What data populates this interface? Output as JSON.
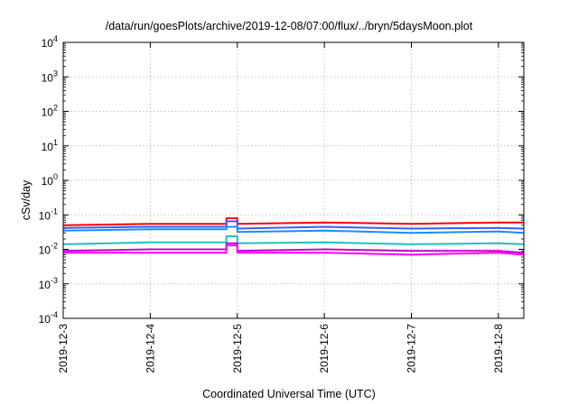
{
  "chart_data": {
    "type": "line",
    "title": "/data/run/goesPlots/archive/2019-12-08/07:00/flux/../bryn/5daysMoon.plot",
    "xlabel": "Coordinated Universal Time (UTC)",
    "ylabel": "cSv/day",
    "y_scale": "log",
    "ylim": [
      0.0001,
      10000
    ],
    "y_ticks": [
      {
        "value": 0.0001,
        "base": "10",
        "exp": "-4"
      },
      {
        "value": 0.001,
        "base": "10",
        "exp": "-3"
      },
      {
        "value": 0.01,
        "base": "10",
        "exp": "-2"
      },
      {
        "value": 0.1,
        "base": "10",
        "exp": "-1"
      },
      {
        "value": 1,
        "base": "10",
        "exp": "0"
      },
      {
        "value": 10,
        "base": "10",
        "exp": "1"
      },
      {
        "value": 100,
        "base": "10",
        "exp": "2"
      },
      {
        "value": 1000,
        "base": "10",
        "exp": "3"
      },
      {
        "value": 10000,
        "base": "10",
        "exp": "4"
      }
    ],
    "xlim": [
      "2019-12-03T00:00",
      "2019-12-08T07:00"
    ],
    "x_ticks": [
      "2019-12-3",
      "2019-12-4",
      "2019-12-5",
      "2019-12-6",
      "2019-12-7",
      "2019-12-8"
    ],
    "grid": true,
    "series": [
      {
        "color": "#ff0000",
        "x": [
          "2019-12-03T00:00",
          "2019-12-04T00:00",
          "2019-12-04T21:00",
          "2019-12-04T21:00",
          "2019-12-05T00:00",
          "2019-12-05T00:00",
          "2019-12-06T00:00",
          "2019-12-07T00:00",
          "2019-12-08T00:00",
          "2019-12-08T07:00"
        ],
        "y": [
          0.05,
          0.055,
          0.055,
          0.08,
          0.08,
          0.055,
          0.06,
          0.055,
          0.06,
          0.06
        ]
      },
      {
        "color": "#3b5bff",
        "x": [
          "2019-12-03T00:00",
          "2019-12-04T00:00",
          "2019-12-04T21:00",
          "2019-12-04T21:00",
          "2019-12-05T00:00",
          "2019-12-05T00:00",
          "2019-12-06T00:00",
          "2019-12-07T00:00",
          "2019-12-08T00:00",
          "2019-12-08T07:00"
        ],
        "y": [
          0.042,
          0.045,
          0.045,
          0.065,
          0.065,
          0.04,
          0.045,
          0.04,
          0.042,
          0.04
        ]
      },
      {
        "color": "#1a8cff",
        "x": [
          "2019-12-03T00:00",
          "2019-12-04T00:00",
          "2019-12-04T21:00",
          "2019-12-04T21:00",
          "2019-12-05T00:00",
          "2019-12-05T00:00",
          "2019-12-06T00:00",
          "2019-12-07T00:00",
          "2019-12-08T00:00",
          "2019-12-08T07:00"
        ],
        "y": [
          0.035,
          0.038,
          0.038,
          0.045,
          0.045,
          0.032,
          0.035,
          0.03,
          0.033,
          0.03
        ]
      },
      {
        "color": "#20c0c0",
        "x": [
          "2019-12-03T00:00",
          "2019-12-04T00:00",
          "2019-12-04T21:00",
          "2019-12-04T21:00",
          "2019-12-05T00:00",
          "2019-12-05T00:00",
          "2019-12-06T00:00",
          "2019-12-07T00:00",
          "2019-12-08T00:00",
          "2019-12-08T07:00"
        ],
        "y": [
          0.014,
          0.016,
          0.016,
          0.024,
          0.024,
          0.015,
          0.016,
          0.014,
          0.015,
          0.014
        ]
      },
      {
        "color": "#c800c8",
        "x": [
          "2019-12-03T00:00",
          "2019-12-04T00:00",
          "2019-12-04T21:00",
          "2019-12-04T21:00",
          "2019-12-05T00:00",
          "2019-12-05T00:00",
          "2019-12-06T00:00",
          "2019-12-07T00:00",
          "2019-12-08T00:00",
          "2019-12-08T07:00"
        ],
        "y": [
          0.009,
          0.01,
          0.01,
          0.015,
          0.015,
          0.009,
          0.01,
          0.009,
          0.009,
          0.008
        ]
      },
      {
        "color": "#ff00ff",
        "x": [
          "2019-12-03T00:00",
          "2019-12-04T00:00",
          "2019-12-04T21:00",
          "2019-12-04T21:00",
          "2019-12-05T00:00",
          "2019-12-05T00:00",
          "2019-12-06T00:00",
          "2019-12-07T00:00",
          "2019-12-08T00:00",
          "2019-12-08T07:00"
        ],
        "y": [
          0.008,
          0.008,
          0.008,
          0.013,
          0.013,
          0.008,
          0.008,
          0.007,
          0.008,
          0.007
        ]
      }
    ]
  }
}
